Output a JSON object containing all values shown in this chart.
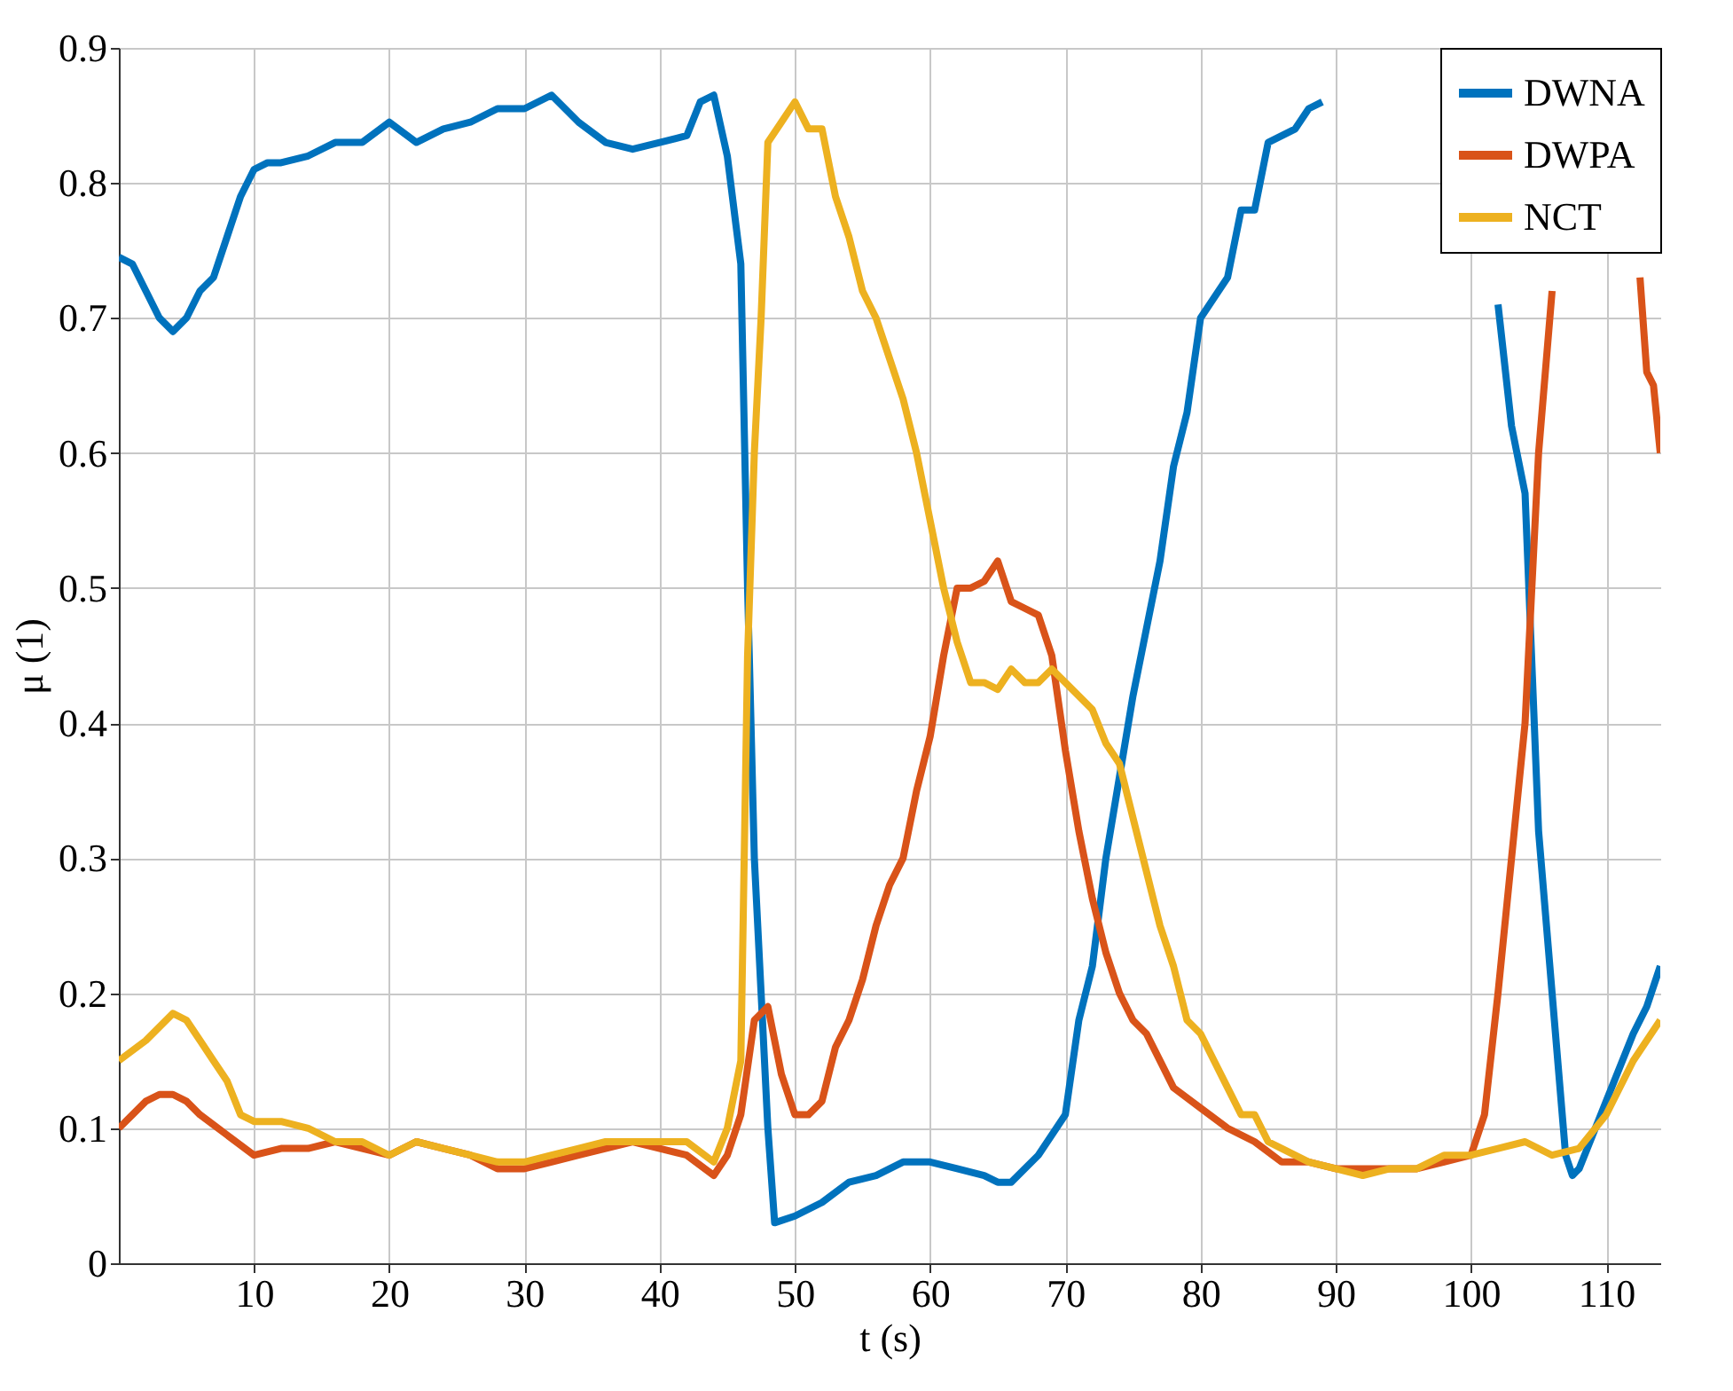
{
  "chart_data": {
    "type": "line",
    "xlabel": "t (s)",
    "ylabel": "μ (1)",
    "xlim": [
      0,
      114
    ],
    "ylim": [
      0,
      0.9
    ],
    "xticks": [
      10,
      20,
      30,
      40,
      50,
      60,
      70,
      80,
      90,
      100,
      110
    ],
    "yticks": [
      0,
      0.1,
      0.2,
      0.3,
      0.4,
      0.5,
      0.6,
      0.7,
      0.8,
      0.9
    ],
    "grid": true,
    "legend": "top right",
    "line_style": "solid",
    "marker": "none",
    "series": [
      {
        "name": "DWNA",
        "color": "#0072bd",
        "x": [
          0,
          1,
          2,
          3,
          4,
          5,
          6,
          7,
          8,
          9,
          10,
          11,
          12,
          14,
          16,
          18,
          20,
          22,
          24,
          26,
          28,
          30,
          32,
          34,
          36,
          38,
          40,
          42,
          43,
          44,
          45,
          46,
          46.5,
          47,
          47.5,
          48,
          48.5,
          50,
          52,
          54,
          56,
          58,
          60,
          62,
          64,
          65,
          66,
          68,
          70,
          71,
          72,
          73,
          74,
          75,
          76,
          77,
          78,
          79,
          80,
          82,
          83,
          84,
          85,
          87,
          88,
          89,
          90,
          102,
          103,
          104,
          105,
          106,
          107,
          107.5,
          108,
          110,
          112,
          113,
          114
        ],
        "values": [
          0.745,
          0.74,
          0.72,
          0.7,
          0.69,
          0.7,
          0.72,
          0.73,
          0.76,
          0.79,
          0.81,
          0.815,
          0.815,
          0.82,
          0.83,
          0.83,
          0.845,
          0.83,
          0.84,
          0.845,
          0.855,
          0.855,
          0.865,
          0.845,
          0.83,
          0.825,
          0.83,
          0.835,
          0.86,
          0.865,
          0.82,
          0.74,
          0.5,
          0.3,
          0.2,
          0.1,
          0.03,
          0.035,
          0.045,
          0.06,
          0.065,
          0.075,
          0.075,
          0.07,
          0.065,
          0.06,
          0.06,
          0.08,
          0.11,
          0.18,
          0.22,
          0.3,
          0.36,
          0.42,
          0.47,
          0.52,
          0.59,
          0.63,
          0.7,
          0.73,
          0.78,
          0.78,
          0.83,
          0.84,
          0.855,
          0.86,
          null,
          0.71,
          0.62,
          0.57,
          0.32,
          0.2,
          0.08,
          0.065,
          0.07,
          0.12,
          0.17,
          0.19,
          0.22
        ]
      },
      {
        "name": "DWPA",
        "color": "#d95319",
        "x": [
          0,
          1,
          2,
          3,
          4,
          5,
          6,
          8,
          10,
          12,
          14,
          16,
          18,
          20,
          22,
          24,
          26,
          28,
          30,
          32,
          34,
          36,
          38,
          40,
          42,
          44,
          45,
          46,
          47,
          48,
          49,
          50,
          51,
          52,
          53,
          54,
          55,
          56,
          57,
          58,
          59,
          60,
          61,
          62,
          63,
          64,
          65,
          66,
          67,
          68,
          69,
          70,
          71,
          72,
          73,
          74,
          75,
          76,
          77,
          78,
          80,
          82,
          84,
          86,
          88,
          90,
          92,
          94,
          96,
          98,
          100,
          101,
          102,
          103,
          104,
          105,
          106,
          107,
          112.5,
          113,
          113.5,
          114
        ],
        "values": [
          0.1,
          0.11,
          0.12,
          0.125,
          0.125,
          0.12,
          0.11,
          0.095,
          0.08,
          0.085,
          0.085,
          0.09,
          0.085,
          0.08,
          0.09,
          0.085,
          0.08,
          0.07,
          0.07,
          0.075,
          0.08,
          0.085,
          0.09,
          0.085,
          0.08,
          0.065,
          0.08,
          0.11,
          0.18,
          0.19,
          0.14,
          0.11,
          0.11,
          0.12,
          0.16,
          0.18,
          0.21,
          0.25,
          0.28,
          0.3,
          0.35,
          0.39,
          0.45,
          0.5,
          0.5,
          0.505,
          0.52,
          0.49,
          0.485,
          0.48,
          0.45,
          0.38,
          0.32,
          0.27,
          0.23,
          0.2,
          0.18,
          0.17,
          0.15,
          0.13,
          0.115,
          0.1,
          0.09,
          0.075,
          0.075,
          0.07,
          0.07,
          0.07,
          0.07,
          0.075,
          0.08,
          0.11,
          0.2,
          0.3,
          0.4,
          0.6,
          0.72,
          null,
          0.73,
          0.66,
          0.65,
          0.6
        ]
      },
      {
        "name": "NCT",
        "color": "#edb120",
        "x": [
          0,
          2,
          4,
          5,
          6,
          7,
          8,
          9,
          10,
          12,
          14,
          16,
          18,
          20,
          22,
          24,
          26,
          28,
          30,
          32,
          34,
          36,
          38,
          40,
          42,
          44,
          45,
          46,
          46.5,
          47,
          47.5,
          48,
          49,
          50,
          51,
          52,
          53,
          54,
          55,
          56,
          57,
          58,
          59,
          60,
          61,
          62,
          63,
          64,
          65,
          66,
          67,
          68,
          69,
          70,
          71,
          72,
          73,
          74,
          75,
          76,
          77,
          78,
          79,
          80,
          81,
          82,
          83,
          84,
          85,
          86,
          88,
          90,
          92,
          94,
          96,
          98,
          100,
          102,
          104,
          106,
          108,
          110,
          112,
          114
        ],
        "values": [
          0.15,
          0.165,
          0.185,
          0.18,
          0.165,
          0.15,
          0.135,
          0.11,
          0.105,
          0.105,
          0.1,
          0.09,
          0.09,
          0.08,
          0.09,
          0.085,
          0.08,
          0.075,
          0.075,
          0.08,
          0.085,
          0.09,
          0.09,
          0.09,
          0.09,
          0.075,
          0.1,
          0.15,
          0.45,
          0.6,
          0.7,
          0.83,
          0.845,
          0.86,
          0.84,
          0.84,
          0.79,
          0.76,
          0.72,
          0.7,
          0.67,
          0.64,
          0.6,
          0.55,
          0.5,
          0.46,
          0.43,
          0.43,
          0.425,
          0.44,
          0.43,
          0.43,
          0.44,
          0.43,
          0.42,
          0.41,
          0.385,
          0.37,
          0.33,
          0.29,
          0.25,
          0.22,
          0.18,
          0.17,
          0.15,
          0.13,
          0.11,
          0.11,
          0.09,
          0.085,
          0.075,
          0.07,
          0.065,
          0.07,
          0.07,
          0.08,
          0.08,
          0.085,
          0.09,
          0.08,
          0.085,
          0.11,
          0.15,
          0.18
        ]
      }
    ]
  }
}
